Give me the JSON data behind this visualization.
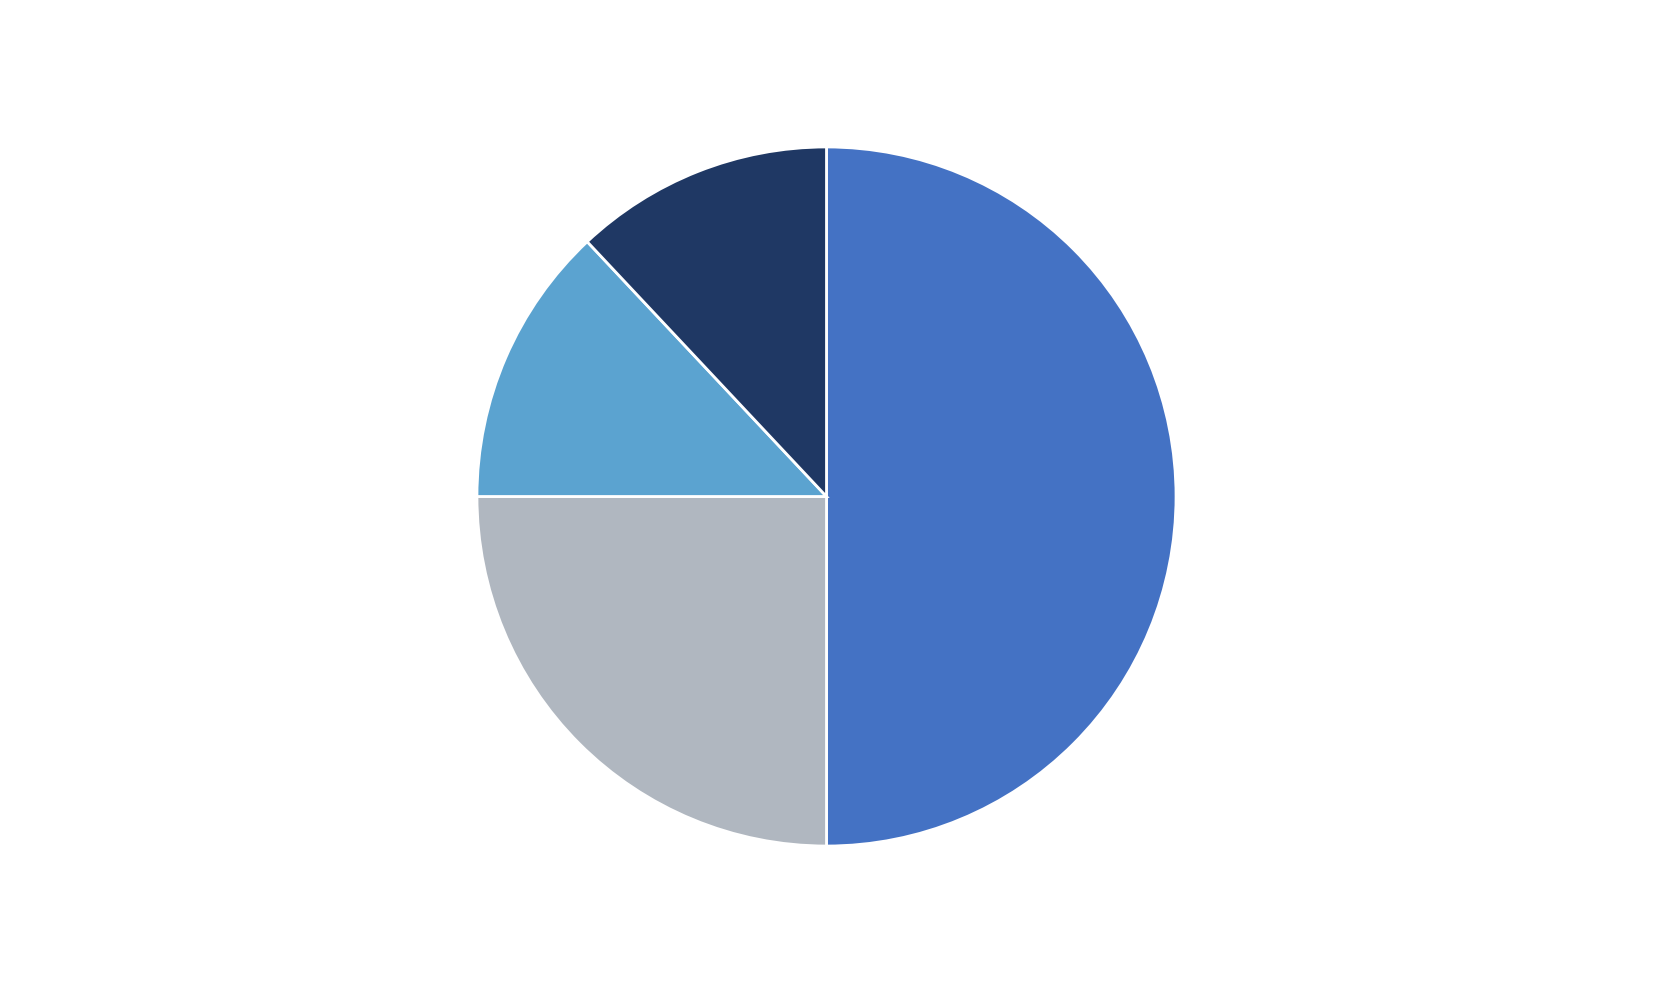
{
  "values": [
    50,
    25,
    13,
    12
  ],
  "colors": [
    "#4472C4",
    "#B0B7C0",
    "#5BA3D0",
    "#1F3864"
  ],
  "startangle": 90,
  "background_color": "#FFFFFF",
  "figsize": [
    16.53,
    9.93
  ],
  "dpi": 100
}
